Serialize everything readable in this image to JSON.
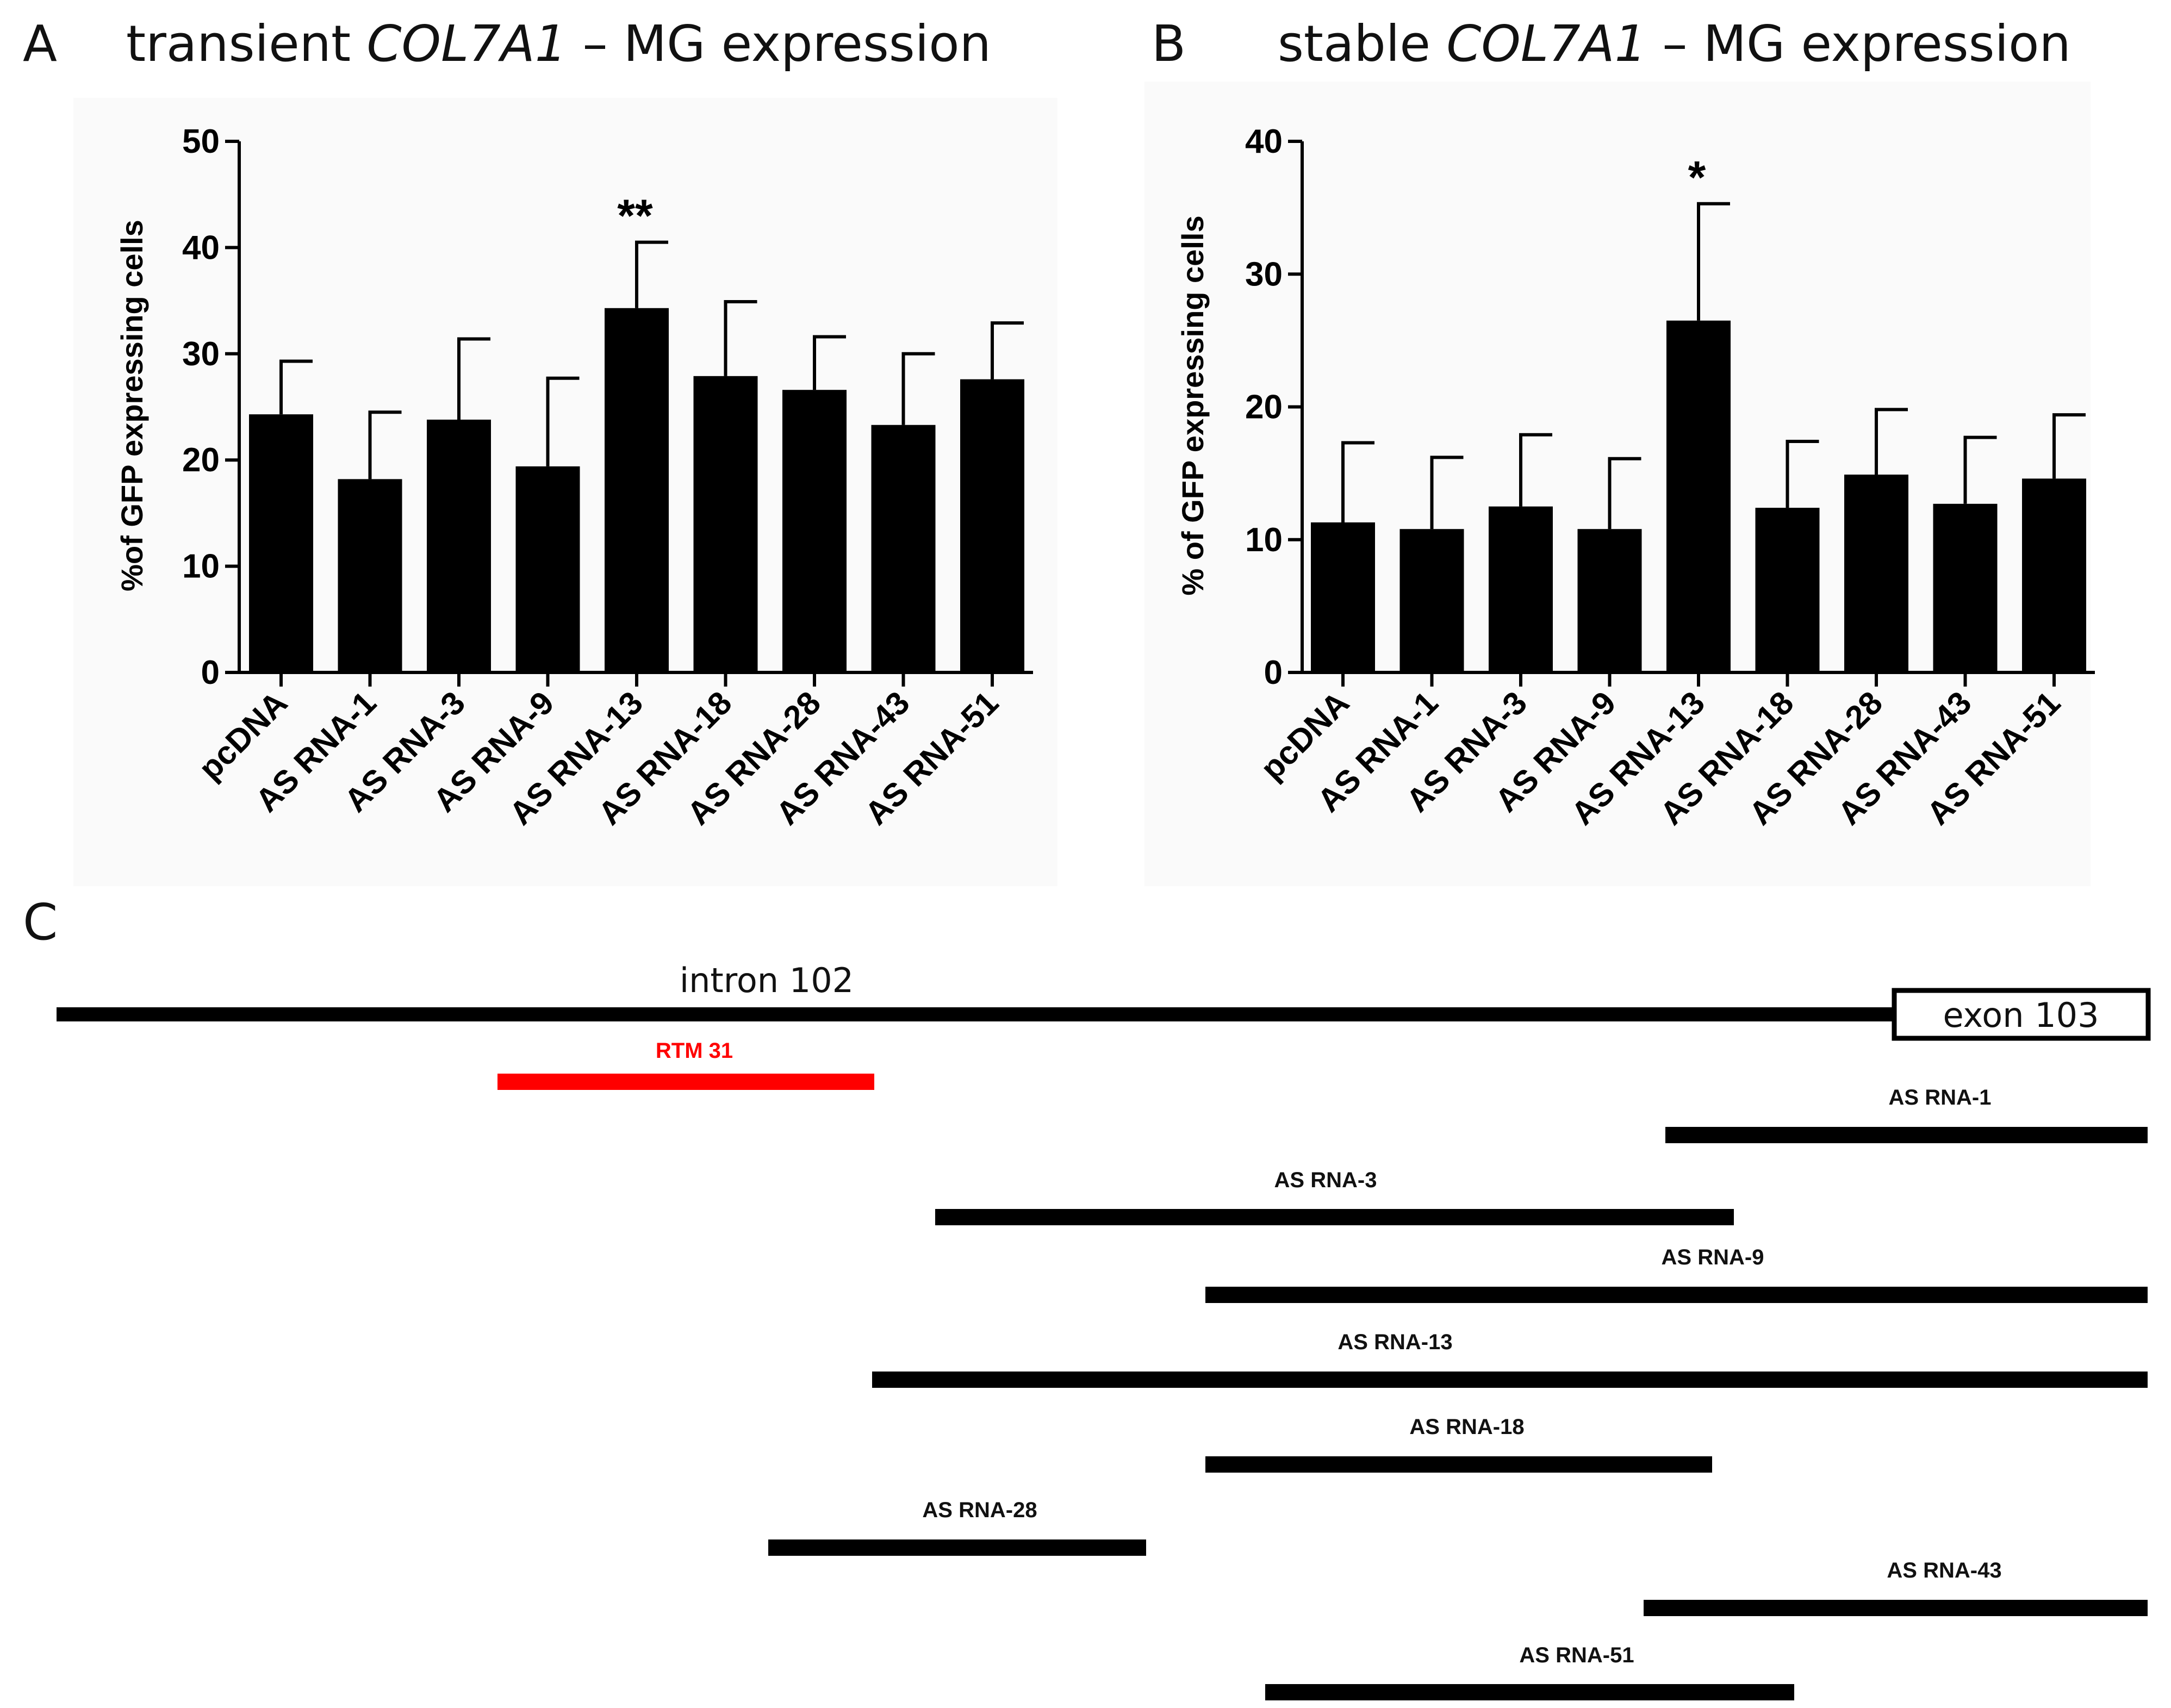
{
  "panels": {
    "A": {
      "letter": "A",
      "title_pre": "transient ",
      "title_gene": "COL7A1",
      "title_post": " – MG expression"
    },
    "B": {
      "letter": "B",
      "title_pre": "stable ",
      "title_gene": "COL7A1",
      "title_post": " – MG expression"
    },
    "C": {
      "letter": "C",
      "intron_label": "intron 102",
      "exon_label": "exon 103",
      "rtm_label": "RTM 31",
      "rtm_color": "#ff0000",
      "segments": [
        {
          "label": "AS RNA-1"
        },
        {
          "label": "AS RNA-3"
        },
        {
          "label": "AS RNA-9"
        },
        {
          "label": "AS RNA-13"
        },
        {
          "label": "AS RNA-18"
        },
        {
          "label": "AS RNA-28"
        },
        {
          "label": "AS RNA-43"
        },
        {
          "label": "AS RNA-51"
        }
      ]
    }
  },
  "chart_data": [
    {
      "type": "bar",
      "title": "transient COL7A1 – MG expression",
      "xlabel": "",
      "ylabel": "%of GFP expressing cells",
      "ylim": [
        0,
        50
      ],
      "yticks": [
        "0",
        "10",
        "20",
        "30",
        "40",
        "50"
      ],
      "categories": [
        "pcDNA",
        "AS RNA-1",
        "AS RNA-3",
        "AS RNA-9",
        "AS RNA-13",
        "AS RNA-18",
        "AS RNA-28",
        "AS RNA-43",
        "AS RNA-51"
      ],
      "values": [
        24.3,
        18.2,
        23.8,
        19.4,
        34.3,
        27.9,
        26.6,
        23.3,
        27.6
      ],
      "error_upper": [
        29.3,
        24.5,
        31.4,
        27.7,
        40.5,
        34.9,
        31.6,
        30.0,
        32.9
      ],
      "significance": [
        "",
        "",
        "",
        "",
        "**",
        "",
        "",
        "",
        ""
      ],
      "bar_color": "#000000"
    },
    {
      "type": "bar",
      "title": "stable COL7A1 – MG expression",
      "xlabel": "",
      "ylabel": "% of GFP expressing cells",
      "ylim": [
        0,
        40
      ],
      "yticks": [
        "0",
        "10",
        "20",
        "30",
        "40"
      ],
      "categories": [
        "pcDNA",
        "AS RNA-1",
        "AS RNA-3",
        "AS RNA-9",
        "AS RNA-13",
        "AS RNA-18",
        "AS RNA-28",
        "AS RNA-43",
        "AS RNA-51"
      ],
      "values": [
        11.3,
        10.8,
        12.5,
        10.8,
        26.5,
        12.4,
        14.9,
        12.7,
        14.6
      ],
      "error_upper": [
        17.3,
        16.2,
        17.9,
        16.1,
        35.3,
        17.4,
        19.8,
        17.7,
        19.4
      ],
      "significance": [
        "",
        "",
        "",
        "",
        "*",
        "",
        "",
        "",
        ""
      ],
      "bar_color": "#000000"
    }
  ]
}
